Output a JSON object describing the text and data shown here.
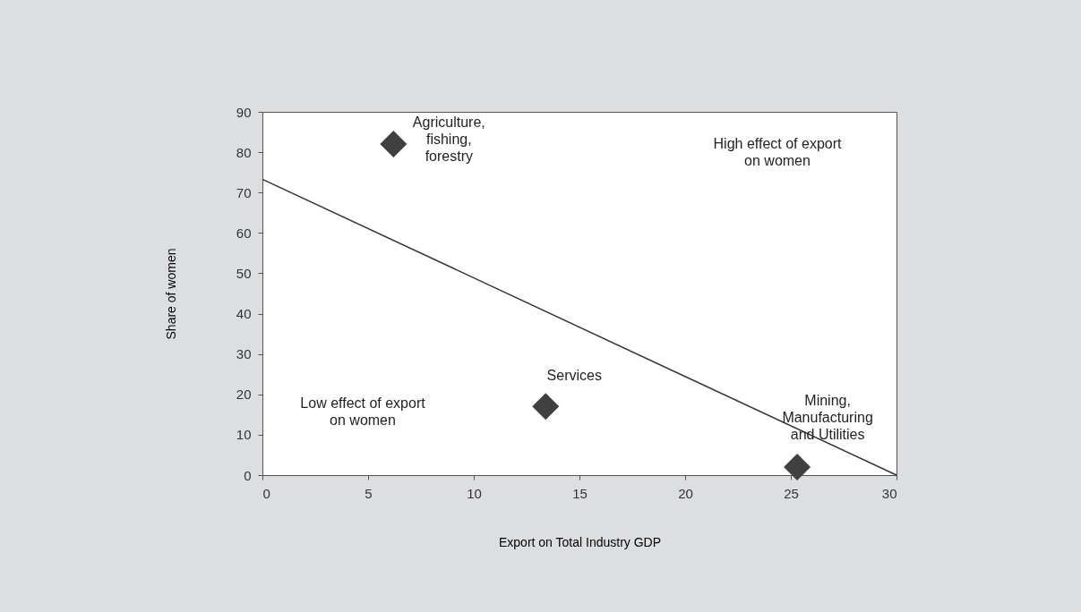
{
  "chart_data": {
    "type": "scatter",
    "xlabel": "Export on Total Industry GDP",
    "ylabel": "Share of women",
    "xlim": [
      0,
      30
    ],
    "ylim": [
      0,
      90
    ],
    "xticks": [
      0,
      5,
      10,
      15,
      20,
      25,
      30
    ],
    "yticks": [
      0,
      10,
      20,
      30,
      40,
      50,
      60,
      70,
      80,
      90
    ],
    "grid": false,
    "marker": "diamond",
    "series": [
      {
        "color": "#404040",
        "x": [
          6.2,
          13.4,
          25.3
        ],
        "values": [
          82,
          17,
          2
        ]
      },
      {
        "type": "line",
        "color": "#333333",
        "x": [
          0,
          30
        ],
        "values": [
          73.3,
          0
        ],
        "line_style": "solid",
        "marker": "none"
      }
    ],
    "annotations": [
      {
        "text": "Agriculture,\nfishing,\nforestry",
        "x": 6.2,
        "y": 82
      },
      {
        "text": "Services",
        "x": 13.4,
        "y": 17
      },
      {
        "text": "Mining,\nManufacturing\nand Utilities",
        "x": 25.3,
        "y": 2
      },
      "High effect of export\non women",
      "Low effect of export\non women"
    ]
  }
}
